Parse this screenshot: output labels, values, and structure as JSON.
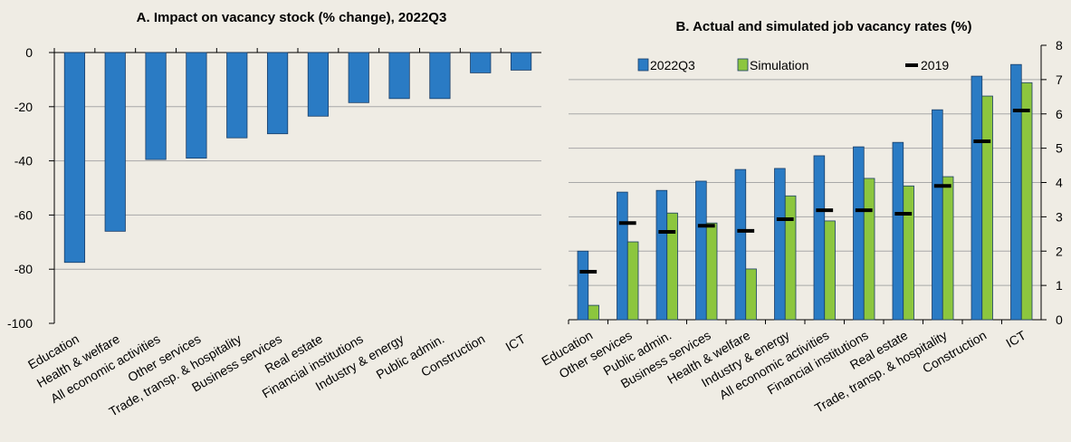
{
  "chart_data": [
    {
      "type": "bar",
      "title": "A. Impact on vacancy stock (% change), 2022Q3",
      "categories": [
        "Education",
        "Health & welfare",
        "All economic activities",
        "Other services",
        "Trade, transp. & hospitality",
        "Business services",
        "Real estate",
        "Financial institutions",
        "Industry & energy",
        "Public admin.",
        "Construction",
        "ICT"
      ],
      "series": [
        {
          "name": null,
          "color": "#2a7bc4",
          "values": [
            -77.5,
            -66,
            -39.5,
            -39,
            -31.5,
            -30,
            -23.5,
            -18.5,
            -17,
            -17,
            -7.5,
            -6.5
          ]
        }
      ],
      "ylim": [
        -100,
        0
      ],
      "yticks": [
        0,
        -20,
        -40,
        -60,
        -80,
        -100
      ],
      "grid": true,
      "axis_side": "left"
    },
    {
      "type": "bar",
      "title": "B. Actual and simulated job vacancy rates (%)",
      "categories": [
        "Education",
        "Other services",
        "Public admin.",
        "Business services",
        "Health & welfare",
        "Industry & energy",
        "All economic activities",
        "Financial institutions",
        "Real estate",
        "Trade, transp. & hospitality",
        "Construction",
        "ICT"
      ],
      "series": [
        {
          "name": "2022Q3",
          "color": "#2a7bc4",
          "values": [
            2.0,
            3.72,
            3.77,
            4.04,
            4.38,
            4.41,
            4.78,
            5.04,
            5.17,
            6.12,
            7.1,
            7.44
          ]
        },
        {
          "name": "Simulation",
          "color": "#8cc63e",
          "values": [
            0.42,
            2.27,
            3.11,
            2.82,
            1.48,
            3.61,
            2.88,
            4.12,
            3.9,
            4.17,
            6.52,
            6.91
          ]
        },
        {
          "name": "2019",
          "color": "#000000",
          "marker": "dash",
          "values": [
            1.4,
            2.82,
            2.56,
            2.74,
            2.59,
            2.93,
            3.19,
            3.19,
            3.09,
            3.9,
            5.2,
            6.1
          ]
        }
      ],
      "ylim": [
        0,
        8
      ],
      "yticks": [
        0,
        1,
        2,
        3,
        4,
        5,
        6,
        7,
        8
      ],
      "grid": true,
      "axis_side": "right",
      "legend": "top"
    }
  ]
}
